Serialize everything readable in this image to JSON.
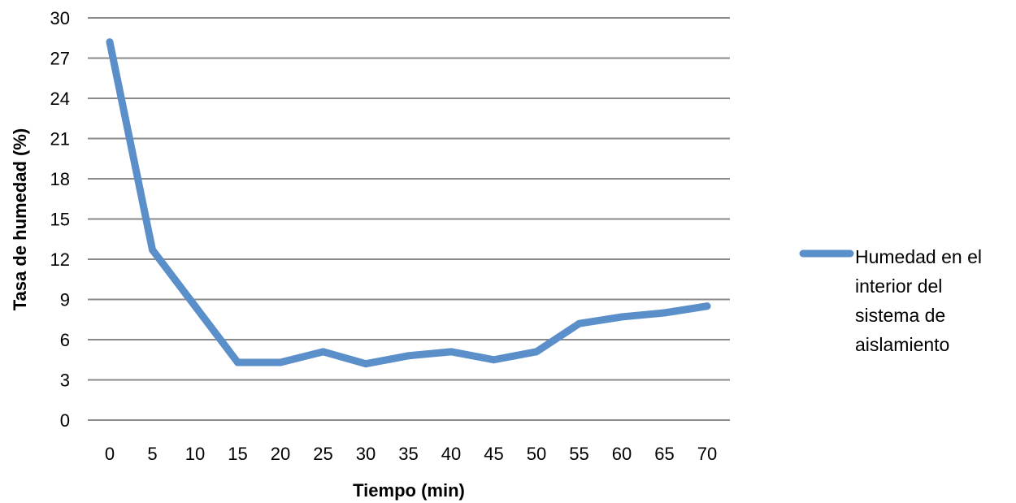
{
  "chart_data": {
    "type": "line",
    "title": "",
    "xlabel": "Tiempo (min)",
    "ylabel": "Tasa de humedad (%)",
    "ylim": [
      0,
      30
    ],
    "yticks": [
      0,
      3,
      6,
      9,
      12,
      15,
      18,
      21,
      24,
      27,
      30
    ],
    "x": [
      0,
      5,
      10,
      15,
      20,
      25,
      30,
      35,
      40,
      45,
      50,
      55,
      60,
      65,
      70
    ],
    "grid": "horizontal",
    "legend_position": "right",
    "series": [
      {
        "name": "Humedad en el interior del sistema de aislamiento",
        "name_lines": [
          "Humedad en el",
          "interior del",
          "sistema de",
          "aislamiento"
        ],
        "color": "#5B8FC9",
        "values": [
          28.2,
          12.7,
          8.5,
          4.3,
          4.3,
          5.1,
          4.2,
          4.8,
          5.1,
          4.5,
          5.1,
          7.2,
          7.7,
          8.0,
          8.5
        ]
      }
    ]
  }
}
